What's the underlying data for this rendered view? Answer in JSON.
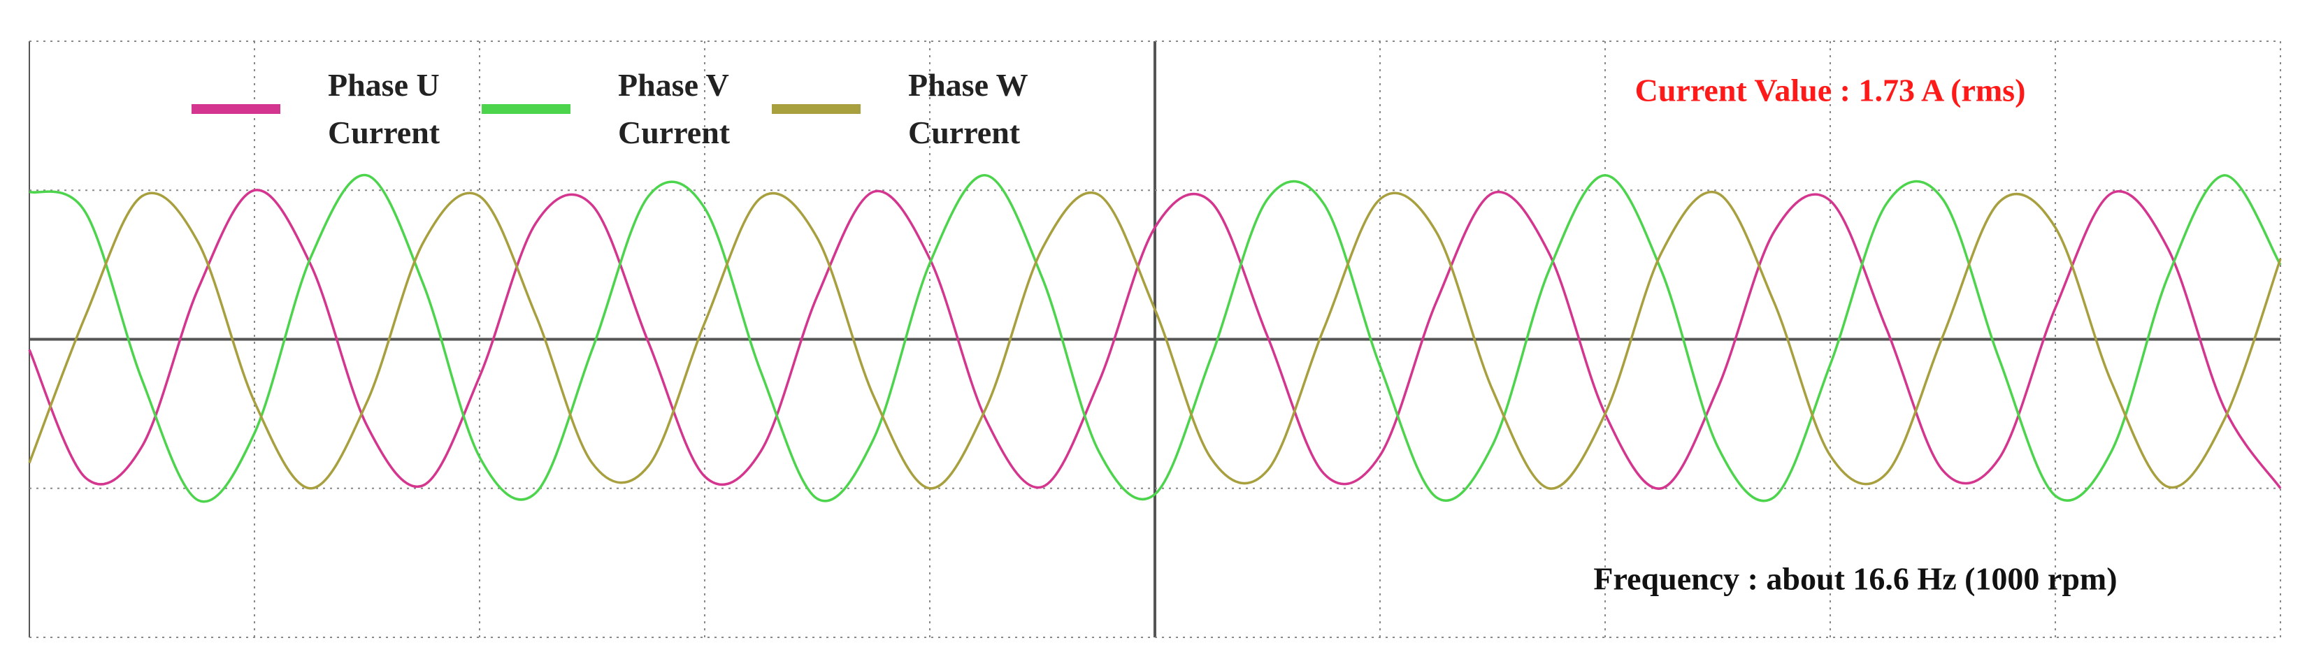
{
  "chart_data": {
    "type": "line",
    "x": [
      0,
      0.25,
      0.5,
      0.75,
      1,
      1.25,
      1.5,
      1.75,
      2,
      2.25,
      2.5,
      2.75,
      3,
      3.25,
      3.5,
      3.75,
      4,
      4.25,
      4.5,
      4.75,
      5,
      5.25,
      5.5,
      5.75,
      6,
      6.25,
      6.5,
      6.75,
      7,
      7.25,
      7.5,
      7.75,
      8,
      8.25,
      8.5,
      8.75,
      9,
      9.25,
      9.5,
      9.75,
      10
    ],
    "series": [
      {
        "name": "Phase U Current",
        "color": "#d4358e",
        "values": [
          -0.07,
          -0.93,
          -0.72,
          0.34,
          1.0,
          0.5,
          -0.58,
          -0.98,
          -0.25,
          0.78,
          0.9,
          -0.02,
          -0.92,
          -0.75,
          0.29,
          0.99,
          0.54,
          -0.54,
          -0.99,
          -0.29,
          0.75,
          0.92,
          0.02,
          -0.9,
          -0.78,
          0.25,
          0.98,
          0.58,
          -0.5,
          -1.0,
          -0.33,
          0.72,
          0.93,
          0.07,
          -0.88,
          -0.8,
          0.21,
          0.98,
          0.61,
          -0.46,
          -1.0
        ]
      },
      {
        "name": "Phase V Current",
        "color": "#4cd44c",
        "values": [
          0.99,
          0.85,
          -0.27,
          -1.08,
          -0.63,
          0.55,
          1.1,
          0.37,
          -0.79,
          -1.03,
          -0.07,
          0.96,
          0.88,
          -0.22,
          -1.07,
          -0.67,
          0.51,
          1.1,
          0.41,
          -0.75,
          -1.04,
          -0.12,
          0.94,
          0.91,
          -0.18,
          -1.06,
          -0.71,
          0.46,
          1.1,
          0.46,
          -0.72,
          -1.06,
          -0.17,
          0.91,
          0.94,
          -0.13,
          -1.05,
          -0.75,
          0.42,
          1.1,
          0.5
        ]
      },
      {
        "name": "Phase W Current",
        "color": "#a89f3e",
        "values": [
          -0.83,
          0.16,
          0.96,
          0.65,
          -0.42,
          -1.0,
          -0.42,
          0.65,
          0.96,
          0.16,
          -0.83,
          -0.85,
          0.11,
          0.95,
          0.68,
          -0.38,
          -1.0,
          -0.46,
          0.61,
          0.97,
          0.2,
          -0.8,
          -0.88,
          0.07,
          0.94,
          0.72,
          -0.34,
          -1.0,
          -0.5,
          0.58,
          0.98,
          0.25,
          -0.78,
          -0.9,
          0.02,
          0.92,
          0.75,
          -0.29,
          -0.99,
          -0.54,
          0.54
        ]
      }
    ],
    "xlim": [
      0,
      10
    ],
    "ylim": [
      -2,
      2
    ],
    "xticks": [
      0,
      1,
      2,
      3,
      4,
      5,
      6,
      7,
      8,
      9,
      10
    ],
    "yticks": [
      -2,
      -1,
      0,
      1,
      2
    ],
    "grid": true,
    "annotations": [
      "Current Value : 1.73 A (rms)",
      "Frequency : about 16.6 Hz (1000 rpm)"
    ],
    "annotation_colors": [
      "#ff1a1a",
      "#111111"
    ]
  }
}
